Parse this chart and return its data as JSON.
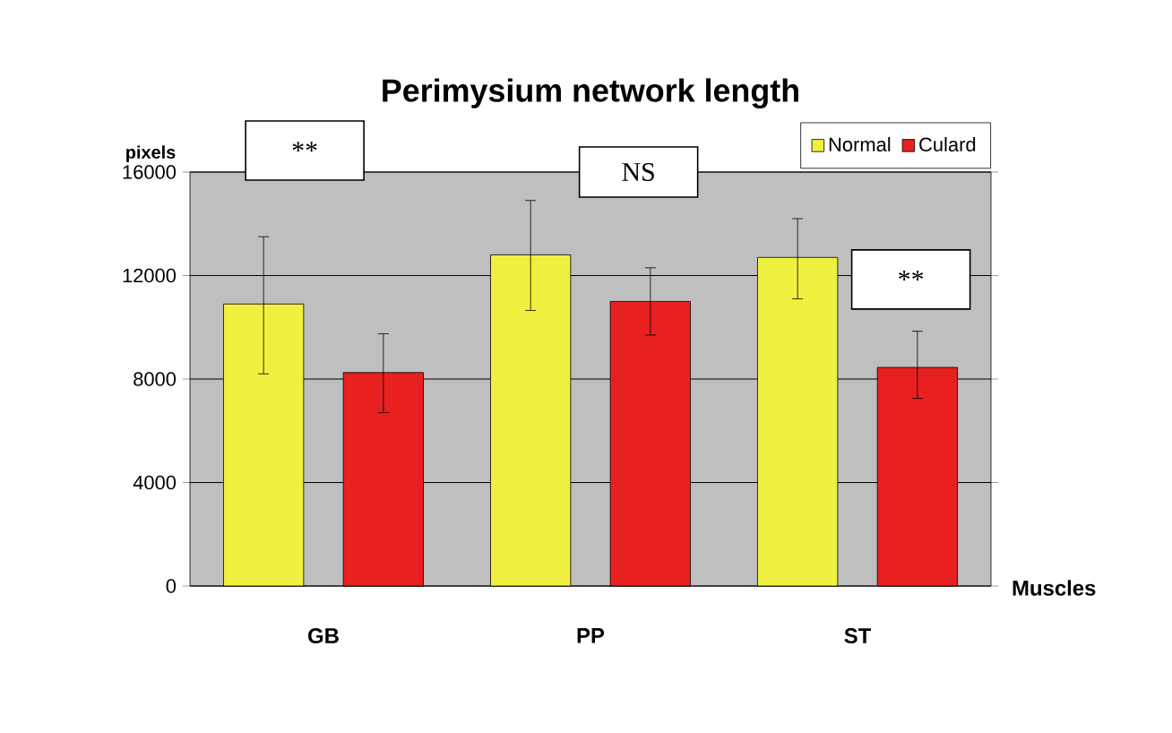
{
  "chart_data": {
    "type": "bar",
    "title": "Perimysium network length",
    "xlabel": "Muscles",
    "ylabel": "pixels",
    "categories": [
      "GB",
      "PP",
      "ST"
    ],
    "series": [
      {
        "name": "Normal",
        "color": "#f0f040",
        "values": [
          10900,
          12800,
          12700
        ],
        "errors": [
          [
            8200,
            13500
          ],
          [
            10650,
            14900
          ],
          [
            11100,
            14200
          ]
        ]
      },
      {
        "name": "Culard",
        "color": "#e82020",
        "values": [
          8250,
          11000,
          8450
        ],
        "errors": [
          [
            6700,
            9750
          ],
          [
            9700,
            12300
          ],
          [
            7250,
            9850
          ]
        ]
      }
    ],
    "ylim": [
      0,
      16000
    ],
    "yticks": [
      0,
      4000,
      8000,
      12000,
      16000
    ],
    "grid": "y",
    "legend": "top right",
    "annotations": [
      "**",
      "NS",
      "**"
    ]
  }
}
